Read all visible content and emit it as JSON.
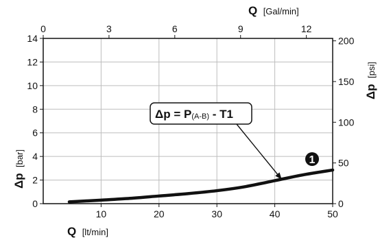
{
  "chart_data": {
    "type": "line",
    "xlabel": {
      "symbol": "Q",
      "unit": "[lt/min]"
    },
    "xlabel_top": {
      "symbol": "Q",
      "unit": "[Gal/min]"
    },
    "ylabel": {
      "symbol": "Δp",
      "unit": "[bar]"
    },
    "ylabel_right": {
      "symbol": "Δp",
      "unit": "[psi]"
    },
    "xlim": [
      0,
      50
    ],
    "ylim": [
      0,
      14
    ],
    "x_ticks": [
      "10",
      "20",
      "30",
      "40",
      "50"
    ],
    "y_ticks": [
      "0",
      "2",
      "4",
      "6",
      "8",
      "10",
      "12",
      "14"
    ],
    "top_ticks": [
      {
        "label": "0",
        "value": 0
      },
      {
        "label": "3",
        "value": 3
      },
      {
        "label": "6",
        "value": 6
      },
      {
        "label": "9",
        "value": 9
      },
      {
        "label": "12",
        "value": 12
      }
    ],
    "top_lim": [
      0,
      13.2
    ],
    "right_ticks": [
      {
        "label": "0",
        "value": 0
      },
      {
        "label": "50",
        "value": 50
      },
      {
        "label": "100",
        "value": 100
      },
      {
        "label": "150",
        "value": 150
      },
      {
        "label": "200",
        "value": 200
      }
    ],
    "right_lim": [
      0,
      203
    ],
    "grid": true,
    "series": [
      {
        "marker": "1",
        "x": [
          4.5,
          10,
          15,
          20,
          25,
          30,
          35,
          40,
          45,
          50
        ],
        "y": [
          0.15,
          0.3,
          0.45,
          0.65,
          0.85,
          1.1,
          1.45,
          1.95,
          2.45,
          2.85
        ]
      }
    ],
    "annotation": {
      "main": "Δp = P",
      "sub": "(A-B)",
      "tail": " - T1",
      "arrow_to": {
        "x": 41.2,
        "y": 2.05
      }
    }
  }
}
